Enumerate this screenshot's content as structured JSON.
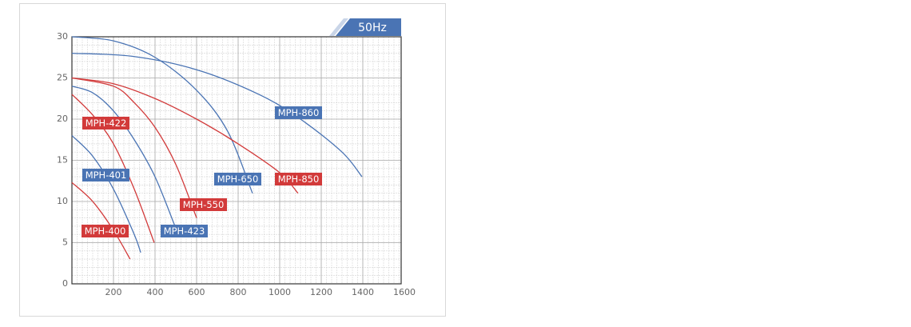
{
  "chart_data": {
    "type": "line",
    "badge": "50Hz",
    "xlim": [
      0,
      1600
    ],
    "ylim": [
      0,
      30
    ],
    "xticks": [
      200,
      400,
      600,
      800,
      1000,
      1200,
      1400,
      1600
    ],
    "yticks": [
      0,
      5,
      10,
      15,
      20,
      25,
      30
    ],
    "grid": true,
    "series": [
      {
        "name": "MPH-400",
        "color": "#d23a3a",
        "x": [
          0,
          100,
          200,
          280
        ],
        "values": [
          12.3,
          10,
          6.5,
          3
        ]
      },
      {
        "name": "MPH-401",
        "color": "#4a74b4",
        "x": [
          0,
          100,
          200,
          300,
          331
        ],
        "values": [
          18,
          15.5,
          11.5,
          6,
          3.8
        ]
      },
      {
        "name": "MPH-422",
        "color": "#d23a3a",
        "x": [
          0,
          100,
          200,
          300,
          396
        ],
        "values": [
          23,
          20.5,
          17,
          11.5,
          5
        ]
      },
      {
        "name": "MPH-423",
        "color": "#4a74b4",
        "x": [
          0,
          100,
          200,
          300,
          400,
          496
        ],
        "values": [
          24,
          23.2,
          21,
          17.5,
          13,
          7
        ]
      },
      {
        "name": "MPH-550",
        "color": "#d23a3a",
        "x": [
          0,
          200,
          300,
          400,
          500,
          600
        ],
        "values": [
          25,
          24,
          22,
          19,
          14.5,
          8
        ]
      },
      {
        "name": "MPH-650",
        "color": "#4a74b4",
        "x": [
          0,
          200,
          400,
          600,
          750,
          869
        ],
        "values": [
          30,
          29.5,
          27.5,
          23.5,
          18.5,
          11
        ]
      },
      {
        "name": "MPH-850",
        "color": "#d23a3a",
        "x": [
          0,
          200,
          400,
          600,
          800,
          1000,
          1088
        ],
        "values": [
          25,
          24.3,
          22.5,
          20,
          17,
          13.5,
          11
        ]
      },
      {
        "name": "MPH-860",
        "color": "#4a74b4",
        "x": [
          0,
          300,
          600,
          900,
          1100,
          1300,
          1396
        ],
        "values": [
          28,
          27.6,
          26,
          23,
          20,
          16,
          13
        ]
      }
    ]
  }
}
